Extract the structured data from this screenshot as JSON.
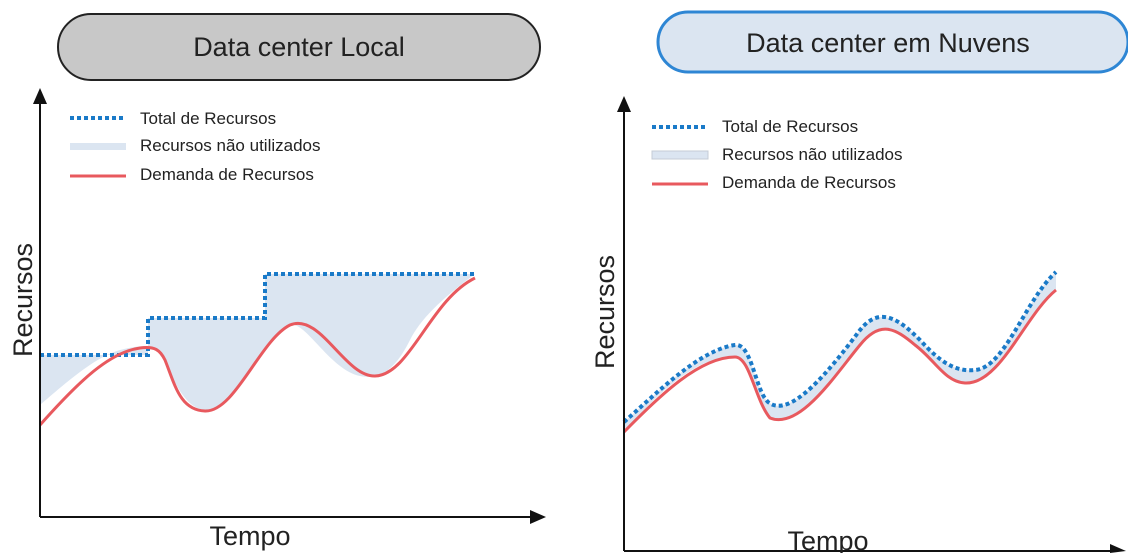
{
  "panels": [
    {
      "title": "Data center Local",
      "ylabel": "Recursos",
      "xlabel": "Tempo",
      "legend": {
        "total": "Total de Recursos",
        "unused": "Recursos não utilizados",
        "demand": "Demanda de Recursos"
      }
    },
    {
      "title": "Data center em Nuvens",
      "ylabel": "Recursos",
      "xlabel": "Tempo",
      "legend": {
        "total": "Total de Recursos",
        "unused": "Recursos não utilizados",
        "demand": "Demanda de Recursos"
      }
    }
  ],
  "colors": {
    "total": "#1a7ac8",
    "demand": "#e8595e",
    "unused": "#dbe5f1",
    "left_title_fill": "#c8c8c8",
    "right_title_fill": "#dbe5f1",
    "right_title_border": "#2e86d4",
    "axis": "#111111"
  }
}
